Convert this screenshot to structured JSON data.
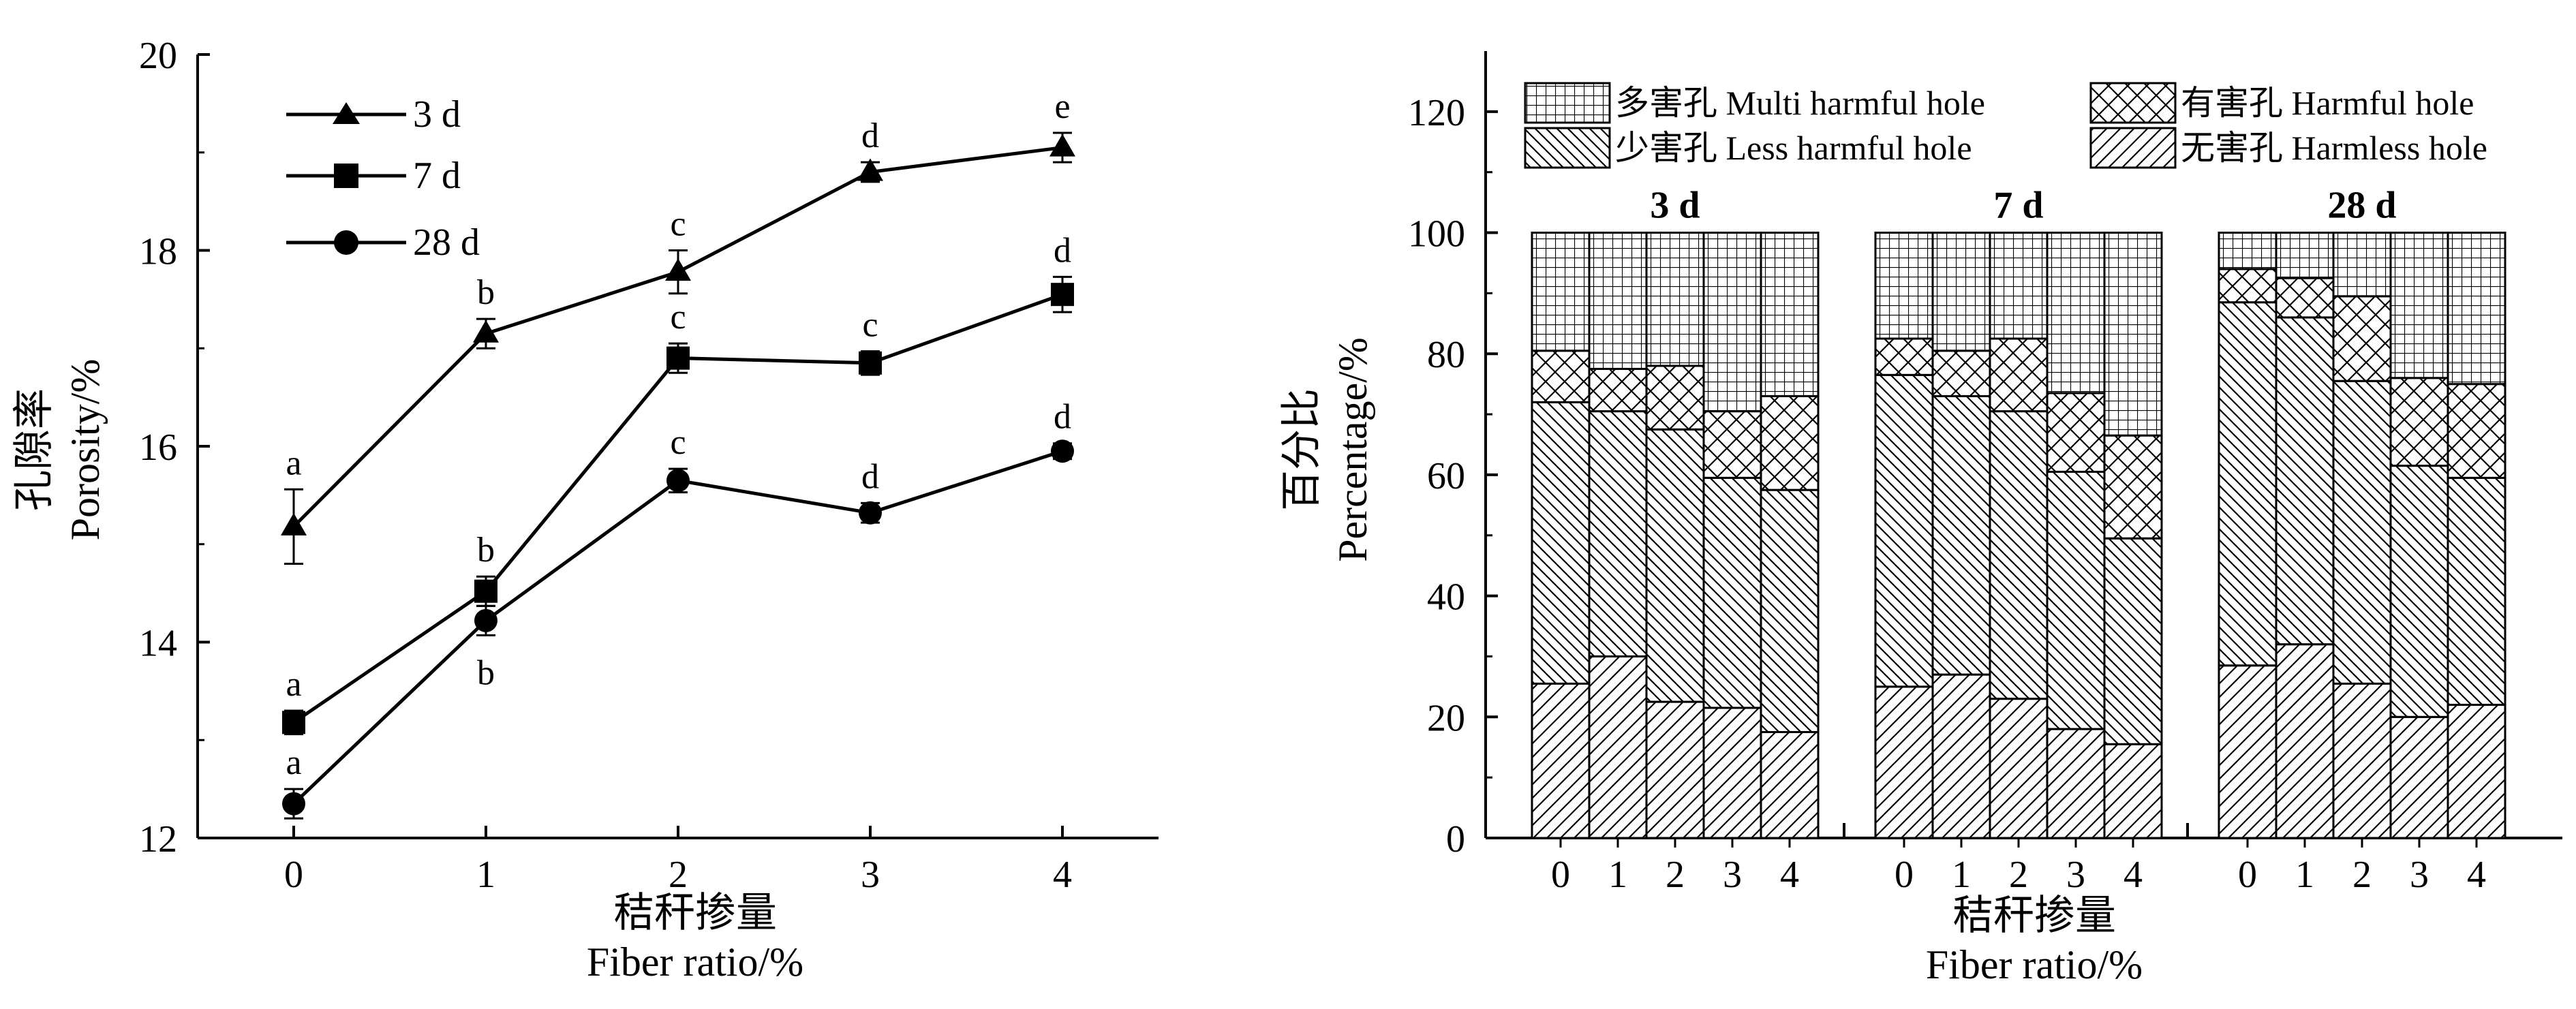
{
  "chart_data": [
    {
      "type": "line",
      "xlabel_cn": "秸秆掺量",
      "xlabel_en": "Fiber ratio/%",
      "ylabel_cn": "孔隙率",
      "ylabel_en": "Porosity/%",
      "x": [
        0,
        1,
        2,
        3,
        4
      ],
      "xlim": [
        -0.5,
        4.5
      ],
      "ylim": [
        12,
        20
      ],
      "yticks": [
        12,
        14,
        16,
        18,
        20
      ],
      "series": [
        {
          "name": "3 d",
          "marker": "triangle",
          "values": [
            15.18,
            17.15,
            17.78,
            18.8,
            19.05
          ],
          "errors": [
            0.38,
            0.15,
            0.22,
            0.1,
            0.15
          ],
          "letters": [
            "a",
            "b",
            "c",
            "d",
            "e"
          ]
        },
        {
          "name": "7 d",
          "marker": "square",
          "values": [
            13.18,
            14.52,
            16.9,
            16.85,
            17.55
          ],
          "errors": [
            0.12,
            0.15,
            0.15,
            0.12,
            0.18
          ],
          "letters": [
            "a",
            "b",
            "c",
            "c",
            "d"
          ]
        },
        {
          "name": "28 d",
          "marker": "circle",
          "values": [
            12.35,
            14.22,
            15.65,
            15.32,
            15.95
          ],
          "errors": [
            0.15,
            0.15,
            0.12,
            0.1,
            0.08
          ],
          "letters": [
            "a",
            "b",
            "c",
            "d",
            "d"
          ]
        }
      ]
    },
    {
      "type": "bar",
      "stacked": true,
      "xlabel_cn": "秸秆掺量",
      "xlabel_en": "Fiber ratio/%",
      "ylabel_cn": "百分比",
      "ylabel_en": "Percentage/%",
      "ylim": [
        0,
        130
      ],
      "yticks": [
        0,
        20,
        40,
        60,
        80,
        100,
        120
      ],
      "categories": [
        "0",
        "1",
        "2",
        "3",
        "4"
      ],
      "groups": [
        "3 d",
        "7 d",
        "28 d"
      ],
      "legend": [
        {
          "key": "multi",
          "label": "多害孔 Multi harmful hole",
          "pattern": "grid"
        },
        {
          "key": "harmful",
          "label": "有害孔 Harmful hole",
          "pattern": "cross"
        },
        {
          "key": "less",
          "label": "少害孔 Less harmful hole",
          "pattern": "back"
        },
        {
          "key": "harmless",
          "label": "无害孔 Harmless hole",
          "pattern": "fwd"
        }
      ],
      "series": [
        {
          "name": "无害孔 Harmless hole",
          "values": [
            [
              25.5,
              30,
              22.5,
              21.5,
              17.5
            ],
            [
              25,
              27,
              23,
              18,
              15.5
            ],
            [
              28.5,
              32,
              25.5,
              20,
              22
            ]
          ]
        },
        {
          "name": "少害孔 Less harmful hole",
          "values": [
            [
              46.5,
              40.5,
              45,
              38,
              40
            ],
            [
              51.5,
              46,
              47.5,
              42.5,
              34
            ],
            [
              60,
              54,
              50,
              41.5,
              37.5
            ]
          ]
        },
        {
          "name": "有害孔 Harmful hole",
          "values": [
            [
              8.5,
              7,
              10.5,
              11,
              15.5
            ],
            [
              6,
              7.5,
              12,
              13,
              17
            ],
            [
              5.5,
              6.5,
              14,
              14.5,
              15.5
            ]
          ]
        },
        {
          "name": "多害孔 Multi harmful hole",
          "values": [
            [
              19.5,
              22.5,
              22,
              29.5,
              27
            ],
            [
              17.5,
              19.5,
              17.5,
              26.5,
              33.5
            ],
            [
              6,
              7.5,
              10.5,
              24,
              25
            ]
          ]
        }
      ]
    }
  ]
}
